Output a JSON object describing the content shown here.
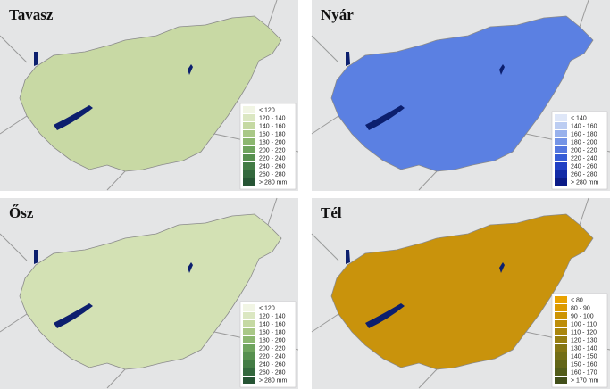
{
  "panels": [
    {
      "title": "Tavasz",
      "map_color": "#c8d9a4",
      "legend": [
        {
          "label": "< 120",
          "color": "#f1f5e4"
        },
        {
          "label": "120 - 140",
          "color": "#dbe7c2"
        },
        {
          "label": "140 - 160",
          "color": "#c5d9a3"
        },
        {
          "label": "160 - 180",
          "color": "#a9c887"
        },
        {
          "label": "180 - 200",
          "color": "#8cb770"
        },
        {
          "label": "200 - 220",
          "color": "#6fa45e"
        },
        {
          "label": "220 - 240",
          "color": "#57904f"
        },
        {
          "label": "240 - 260",
          "color": "#437c45"
        },
        {
          "label": "260 - 280",
          "color": "#33683d"
        },
        {
          "label": "> 280 mm",
          "color": "#265434"
        }
      ]
    },
    {
      "title": "Nyár",
      "map_color": "#5b80e2",
      "legend": [
        {
          "label": "< 140",
          "color": "#dfe7f8"
        },
        {
          "label": "140 - 160",
          "color": "#bccdf2"
        },
        {
          "label": "160 - 180",
          "color": "#98b1ec"
        },
        {
          "label": "180 - 200",
          "color": "#7494e6"
        },
        {
          "label": "200 - 220",
          "color": "#5477df"
        },
        {
          "label": "220 - 240",
          "color": "#365cd6"
        },
        {
          "label": "240 - 260",
          "color": "#2040c4"
        },
        {
          "label": "260 - 280",
          "color": "#122aa6"
        },
        {
          "label": "> 280 mm",
          "color": "#0a1a86"
        }
      ]
    },
    {
      "title": "Ősz",
      "map_color": "#d3e1b4",
      "legend": [
        {
          "label": "< 120",
          "color": "#f1f5e4"
        },
        {
          "label": "120 - 140",
          "color": "#dbe7c2"
        },
        {
          "label": "140 - 160",
          "color": "#c5d9a3"
        },
        {
          "label": "160 - 180",
          "color": "#a9c887"
        },
        {
          "label": "180 - 200",
          "color": "#8cb770"
        },
        {
          "label": "200 - 220",
          "color": "#6fa45e"
        },
        {
          "label": "220 - 240",
          "color": "#57904f"
        },
        {
          "label": "240 - 260",
          "color": "#437c45"
        },
        {
          "label": "260 - 280",
          "color": "#33683d"
        },
        {
          "label": "> 280 mm",
          "color": "#265434"
        }
      ]
    },
    {
      "title": "Tél",
      "map_color": "#c9930c",
      "legend": [
        {
          "label": "< 80",
          "color": "#e9a200"
        },
        {
          "label": "80 - 90",
          "color": "#dc9a00"
        },
        {
          "label": "90 - 100",
          "color": "#cd9404"
        },
        {
          "label": "100 - 110",
          "color": "#bd8d08"
        },
        {
          "label": "110 - 120",
          "color": "#aa860c"
        },
        {
          "label": "120 - 130",
          "color": "#977e10"
        },
        {
          "label": "130 - 140",
          "color": "#857614"
        },
        {
          "label": "140 - 150",
          "color": "#736e16"
        },
        {
          "label": "150 - 160",
          "color": "#626518"
        },
        {
          "label": "160 - 170",
          "color": "#525c19"
        },
        {
          "label": "> 170 mm",
          "color": "#424f1a"
        }
      ]
    }
  ]
}
